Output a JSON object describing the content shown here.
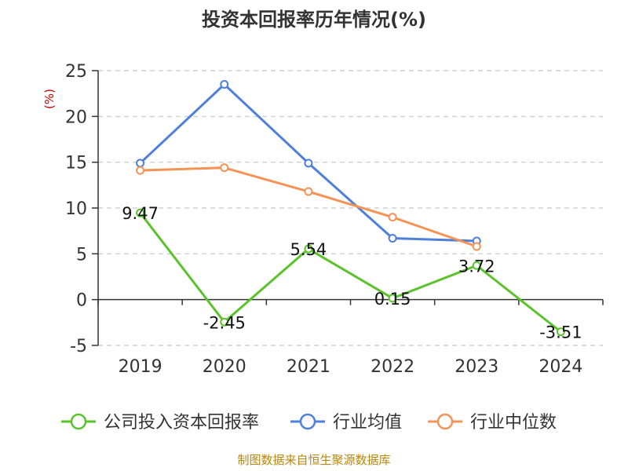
{
  "chart_data": {
    "type": "line",
    "title": "投资本回报率历年情况(%)",
    "ylabel": "(%)",
    "ylim": [
      -5,
      25
    ],
    "yticks": [
      "25",
      "20",
      "15",
      "10",
      "5",
      "0",
      "-5"
    ],
    "ytick_values": [
      25,
      20,
      15,
      10,
      5,
      0,
      -5
    ],
    "categories": [
      "2019",
      "2020",
      "2021",
      "2022",
      "2023",
      "2024"
    ],
    "grid": true,
    "legend_position": "bottom",
    "series": [
      {
        "name": "公司投入资本回报率",
        "color": "#5ac22a",
        "values": [
          9.47,
          -2.45,
          5.54,
          0.15,
          3.72,
          -3.51
        ],
        "labels": [
          "9.47",
          "-2.45",
          "5.54",
          "0.15",
          "3.72",
          "-3.51"
        ]
      },
      {
        "name": "行业均值",
        "color": "#4e7fdc",
        "values": [
          14.9,
          23.5,
          14.9,
          6.7,
          6.4,
          null
        ]
      },
      {
        "name": "行业中位数",
        "color": "#f59255",
        "values": [
          14.1,
          14.4,
          11.8,
          9.0,
          5.8,
          null
        ]
      }
    ]
  },
  "source": "制图数据来自恒生聚源数据库"
}
